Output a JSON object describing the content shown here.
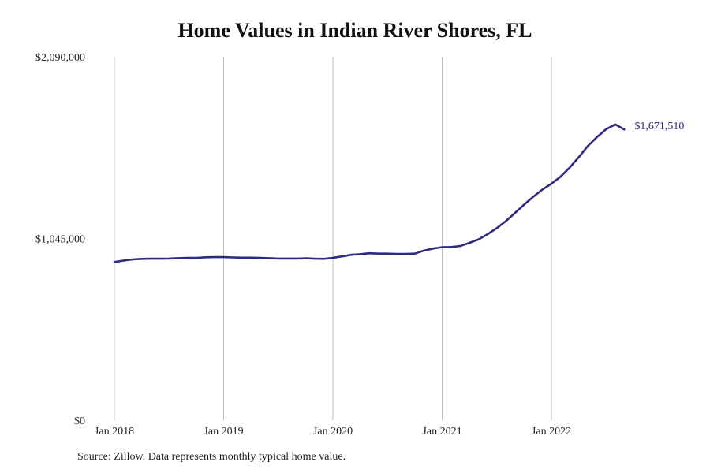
{
  "chart_data": {
    "type": "line",
    "title": "Home Values in Indian River Shores, FL",
    "xlabel": "",
    "ylabel": "",
    "x_ticks": [
      "Jan 2018",
      "Jan 2019",
      "Jan 2020",
      "Jan 2021",
      "Jan 2022"
    ],
    "y_ticks": [
      "$0",
      "$1,045,000",
      "$2,090,000"
    ],
    "y_tick_values": [
      0,
      1045000,
      2090000
    ],
    "ylim": [
      0,
      2090000
    ],
    "xlim": [
      0,
      56
    ],
    "x_axis_unit": "months from Jan 2018",
    "grid": {
      "vertical": true,
      "horizontal": false
    },
    "end_label": "$1,671,510",
    "line_color": "#2e2a7d",
    "series": [
      {
        "x": [
          0,
          1,
          2,
          3,
          4,
          5,
          6,
          7,
          8,
          9,
          10,
          11,
          12,
          13,
          14,
          15,
          16,
          17,
          18,
          19,
          20,
          21,
          22,
          23,
          24,
          25,
          26,
          27,
          28,
          29,
          30,
          31,
          32,
          33,
          34,
          35,
          36,
          37,
          38,
          39,
          40,
          41,
          42,
          43,
          44,
          45,
          46,
          47,
          48,
          49,
          50,
          51,
          52,
          53,
          54,
          55,
          56
        ],
        "values": [
          910000,
          918000,
          925000,
          928000,
          929000,
          929000,
          930000,
          932000,
          934000,
          934000,
          937000,
          938000,
          938000,
          936000,
          935000,
          935000,
          934000,
          932000,
          930000,
          930000,
          930000,
          931000,
          929000,
          928000,
          934000,
          942000,
          951000,
          955000,
          960000,
          958000,
          958000,
          956000,
          956000,
          958000,
          975000,
          987000,
          995000,
          996000,
          1002000,
          1020000,
          1040000,
          1070000,
          1105000,
          1145000,
          1192000,
          1240000,
          1285000,
          1326000,
          1360000,
          1400000,
          1452000,
          1512000,
          1577000,
          1628000,
          1673000,
          1701000,
          1671510
        ]
      }
    ],
    "source_note": "Source: Zillow. Data represents monthly typical home value."
  }
}
